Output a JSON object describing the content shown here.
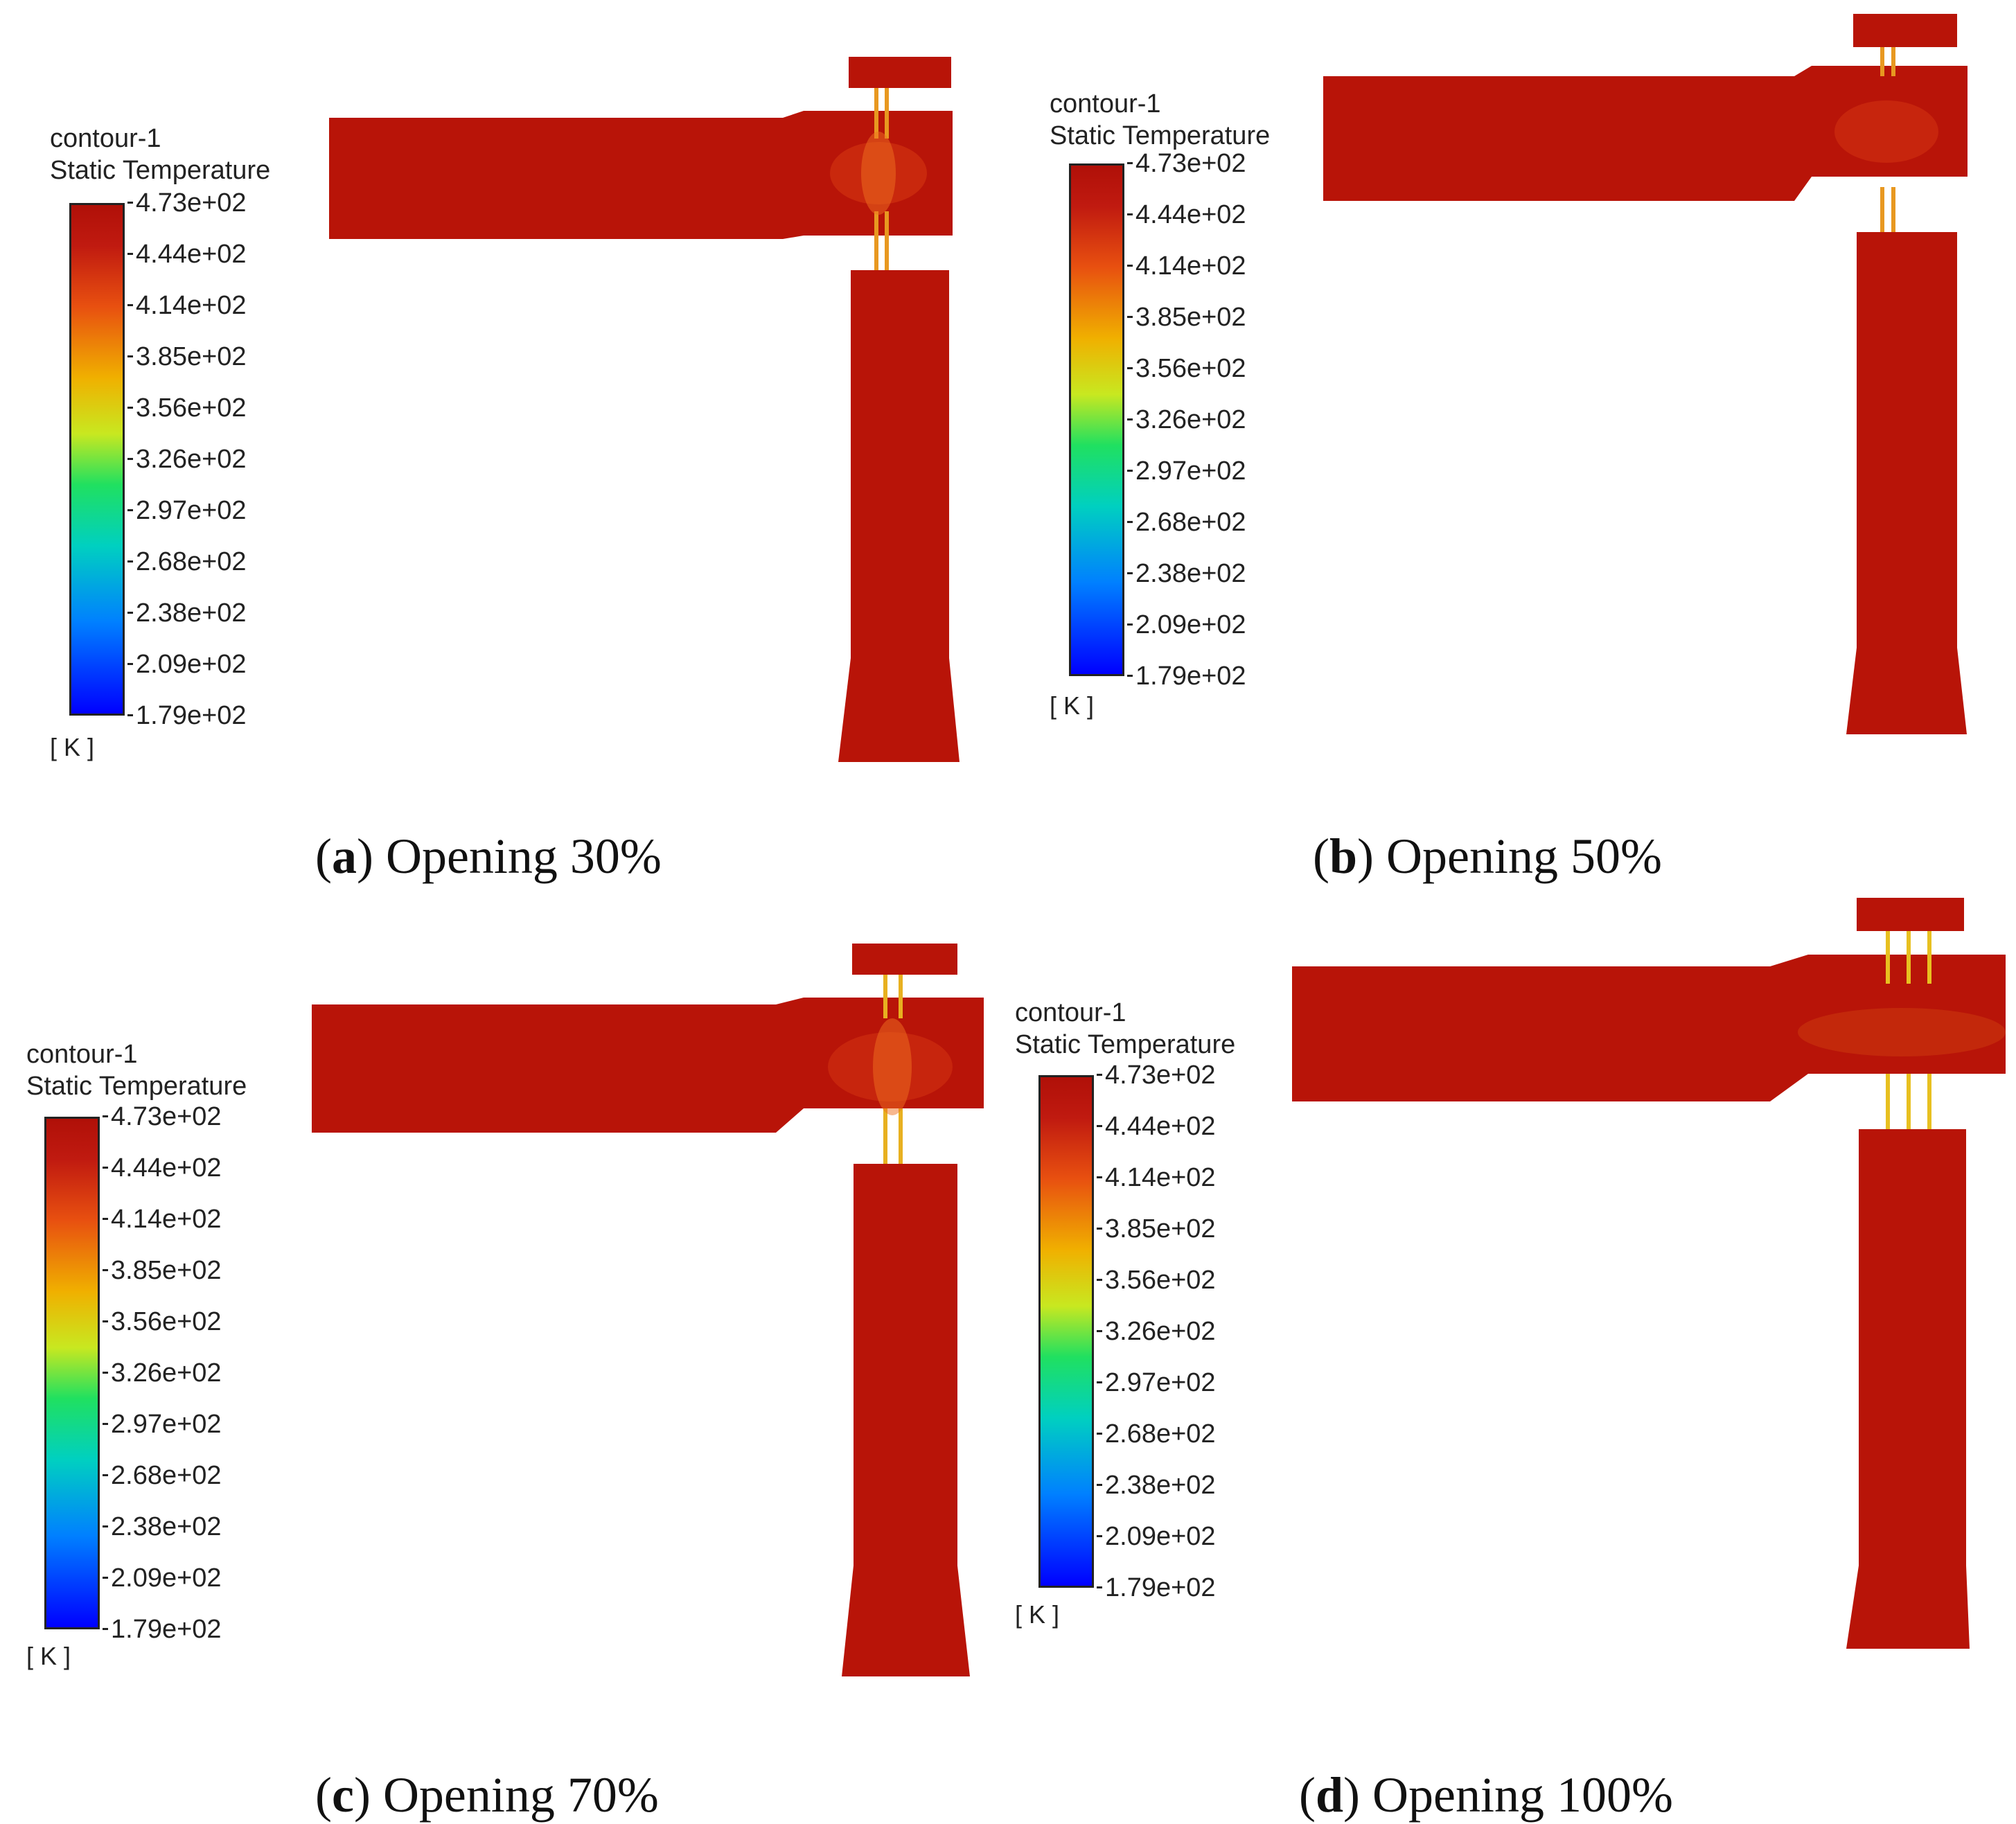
{
  "colorbar": {
    "title_line1": "contour-1",
    "title_line2": "Static Temperature",
    "ticks": [
      "4.73e+02",
      "4.44e+02",
      "4.14e+02",
      "3.85e+02",
      "3.56e+02",
      "3.26e+02",
      "2.97e+02",
      "2.68e+02",
      "2.38e+02",
      "2.09e+02",
      "1.79e+02"
    ],
    "unit": "[ K ]",
    "colors": {
      "max": "#b01008",
      "min": "#0000ff"
    }
  },
  "panels": [
    {
      "letter": "a",
      "caption": "Opening 30%"
    },
    {
      "letter": "b",
      "caption": "Opening 50%"
    },
    {
      "letter": "c",
      "caption": "Opening 70%"
    },
    {
      "letter": "d",
      "caption": "Opening 100%"
    }
  ],
  "field_color": "#b81408"
}
